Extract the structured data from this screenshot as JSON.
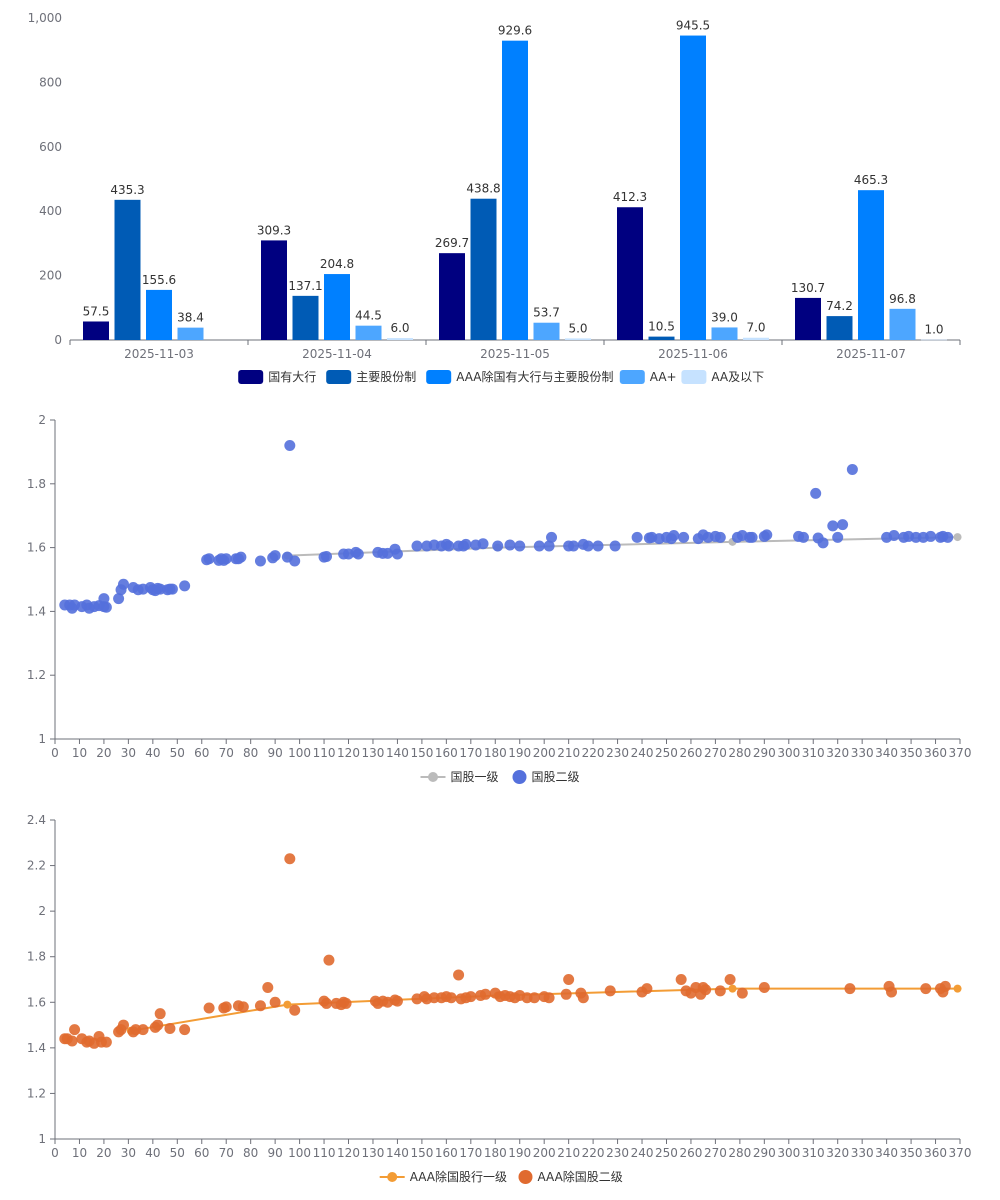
{
  "chart_data": [
    {
      "type": "bar",
      "categories": [
        "2025-11-03",
        "2025-11-04",
        "2025-11-05",
        "2025-11-06",
        "2025-11-07"
      ],
      "series": [
        {
          "name": "国有大行",
          "color": "#000080",
          "values": [
            57.5,
            309.3,
            269.7,
            412.3,
            130.7
          ]
        },
        {
          "name": "主要股份制",
          "color": "#005bb5",
          "values": [
            435.3,
            137.1,
            438.8,
            10.5,
            74.2
          ]
        },
        {
          "name": "AAA除国有大行与主要股份制",
          "color": "#0080ff",
          "values": [
            155.6,
            204.8,
            929.6,
            945.5,
            465.3
          ]
        },
        {
          "name": "AA+",
          "color": "#4da6ff",
          "values": [
            38.4,
            44.5,
            53.7,
            39.0,
            96.8
          ]
        },
        {
          "name": "AA及以下",
          "color": "#c6e2ff",
          "values": [
            null,
            6.0,
            5.0,
            7.0,
            1.0
          ]
        }
      ],
      "labels": [
        [
          "57.5",
          "435.3",
          "155.6",
          "38.4",
          ""
        ],
        [
          "309.3",
          "137.1",
          "204.8",
          "44.5",
          "6.0"
        ],
        [
          "269.7",
          "438.8",
          "929.6",
          "53.7",
          "5.0"
        ],
        [
          "412.3",
          "10.5",
          "945.5",
          "39.0",
          "7.0"
        ],
        [
          "130.7",
          "74.2",
          "465.3",
          "96.8",
          "1.0"
        ]
      ],
      "ylim": [
        0,
        1000
      ],
      "yticks": [
        "0",
        "200",
        "400",
        "600",
        "800",
        "1,000"
      ],
      "ytick_values": [
        0,
        200,
        400,
        600,
        800,
        1000
      ],
      "legend_position": "bottom"
    },
    {
      "type": "scatter",
      "xlim": [
        0,
        370
      ],
      "ylim": [
        1,
        2
      ],
      "xticks": [
        "0",
        "10",
        "20",
        "30",
        "40",
        "50",
        "60",
        "70",
        "80",
        "90",
        "100",
        "110",
        "120",
        "130",
        "140",
        "150",
        "160",
        "170",
        "180",
        "190",
        "200",
        "210",
        "220",
        "230",
        "240",
        "250",
        "260",
        "270",
        "280",
        "290",
        "300",
        "310",
        "320",
        "330",
        "340",
        "350",
        "360",
        "370"
      ],
      "xtick_values": [
        0,
        10,
        20,
        30,
        40,
        50,
        60,
        70,
        80,
        90,
        100,
        110,
        120,
        130,
        140,
        150,
        160,
        170,
        180,
        190,
        200,
        210,
        220,
        230,
        240,
        250,
        260,
        270,
        280,
        290,
        300,
        310,
        320,
        330,
        340,
        350,
        360,
        370
      ],
      "yticks": [
        "1",
        "1.2",
        "1.4",
        "1.6",
        "1.8",
        "2"
      ],
      "ytick_values": [
        1,
        1.2,
        1.4,
        1.6,
        1.8,
        2
      ],
      "legend_position": "bottom",
      "line_series": {
        "name": "国股一级",
        "color": "#bbbbbb",
        "points": [
          [
            95,
            1.575
          ],
          [
            181,
            1.6
          ],
          [
            277,
            1.618
          ],
          [
            369,
            1.633
          ]
        ]
      },
      "scatter_series": {
        "name": "国股二级",
        "color": "#5470dc",
        "points": [
          [
            4,
            1.42
          ],
          [
            6,
            1.42
          ],
          [
            7,
            1.41
          ],
          [
            8,
            1.42
          ],
          [
            11,
            1.415
          ],
          [
            13,
            1.42
          ],
          [
            14,
            1.41
          ],
          [
            16,
            1.415
          ],
          [
            18,
            1.418
          ],
          [
            20,
            1.415
          ],
          [
            20,
            1.44
          ],
          [
            21,
            1.413
          ],
          [
            26,
            1.44
          ],
          [
            27,
            1.468
          ],
          [
            28,
            1.485
          ],
          [
            32,
            1.475
          ],
          [
            34,
            1.468
          ],
          [
            36,
            1.47
          ],
          [
            39,
            1.475
          ],
          [
            40,
            1.468
          ],
          [
            41,
            1.465
          ],
          [
            42,
            1.472
          ],
          [
            43,
            1.47
          ],
          [
            46,
            1.468
          ],
          [
            47,
            1.47
          ],
          [
            48,
            1.47
          ],
          [
            53,
            1.48
          ],
          [
            62,
            1.562
          ],
          [
            63,
            1.565
          ],
          [
            67,
            1.56
          ],
          [
            68,
            1.565
          ],
          [
            69,
            1.56
          ],
          [
            70,
            1.565
          ],
          [
            74,
            1.565
          ],
          [
            75,
            1.565
          ],
          [
            76,
            1.57
          ],
          [
            84,
            1.558
          ],
          [
            89,
            1.568
          ],
          [
            90,
            1.575
          ],
          [
            95,
            1.57
          ],
          [
            96,
            1.92
          ],
          [
            98,
            1.558
          ],
          [
            110,
            1.57
          ],
          [
            111,
            1.572
          ],
          [
            118,
            1.58
          ],
          [
            120,
            1.58
          ],
          [
            123,
            1.585
          ],
          [
            124,
            1.58
          ],
          [
            132,
            1.585
          ],
          [
            134,
            1.582
          ],
          [
            136,
            1.582
          ],
          [
            139,
            1.595
          ],
          [
            140,
            1.58
          ],
          [
            148,
            1.605
          ],
          [
            152,
            1.605
          ],
          [
            155,
            1.608
          ],
          [
            158,
            1.605
          ],
          [
            160,
            1.61
          ],
          [
            161,
            1.605
          ],
          [
            165,
            1.605
          ],
          [
            167,
            1.605
          ],
          [
            168,
            1.61
          ],
          [
            172,
            1.608
          ],
          [
            175,
            1.612
          ],
          [
            181,
            1.605
          ],
          [
            186,
            1.608
          ],
          [
            190,
            1.605
          ],
          [
            198,
            1.605
          ],
          [
            202,
            1.605
          ],
          [
            203,
            1.632
          ],
          [
            210,
            1.605
          ],
          [
            212,
            1.605
          ],
          [
            216,
            1.61
          ],
          [
            218,
            1.605
          ],
          [
            222,
            1.605
          ],
          [
            229,
            1.605
          ],
          [
            238,
            1.632
          ],
          [
            243,
            1.63
          ],
          [
            244,
            1.632
          ],
          [
            247,
            1.628
          ],
          [
            250,
            1.632
          ],
          [
            252,
            1.628
          ],
          [
            253,
            1.638
          ],
          [
            257,
            1.632
          ],
          [
            263,
            1.628
          ],
          [
            265,
            1.64
          ],
          [
            267,
            1.632
          ],
          [
            270,
            1.635
          ],
          [
            272,
            1.632
          ],
          [
            279,
            1.632
          ],
          [
            281,
            1.638
          ],
          [
            284,
            1.632
          ],
          [
            285,
            1.632
          ],
          [
            290,
            1.635
          ],
          [
            291,
            1.64
          ],
          [
            304,
            1.635
          ],
          [
            306,
            1.632
          ],
          [
            311,
            1.77
          ],
          [
            312,
            1.63
          ],
          [
            314,
            1.615
          ],
          [
            318,
            1.668
          ],
          [
            320,
            1.632
          ],
          [
            322,
            1.672
          ],
          [
            326,
            1.845
          ],
          [
            340,
            1.632
          ],
          [
            343,
            1.638
          ],
          [
            347,
            1.632
          ],
          [
            349,
            1.635
          ],
          [
            352,
            1.632
          ],
          [
            355,
            1.632
          ],
          [
            358,
            1.635
          ],
          [
            362,
            1.632
          ],
          [
            363,
            1.635
          ],
          [
            365,
            1.632
          ]
        ]
      }
    },
    {
      "type": "scatter",
      "xlim": [
        0,
        370
      ],
      "ylim": [
        1,
        2.4
      ],
      "xticks": [
        "0",
        "10",
        "20",
        "30",
        "40",
        "50",
        "60",
        "70",
        "80",
        "90",
        "100",
        "110",
        "120",
        "130",
        "140",
        "150",
        "160",
        "170",
        "180",
        "190",
        "200",
        "210",
        "220",
        "230",
        "240",
        "250",
        "260",
        "270",
        "280",
        "290",
        "300",
        "310",
        "320",
        "330",
        "340",
        "350",
        "360",
        "370"
      ],
      "xtick_values": [
        0,
        10,
        20,
        30,
        40,
        50,
        60,
        70,
        80,
        90,
        100,
        110,
        120,
        130,
        140,
        150,
        160,
        170,
        180,
        190,
        200,
        210,
        220,
        230,
        240,
        250,
        260,
        270,
        280,
        290,
        300,
        310,
        320,
        330,
        340,
        350,
        360,
        370
      ],
      "yticks": [
        "1",
        "1.2",
        "1.4",
        "1.6",
        "1.8",
        "2",
        "2.2",
        "2.4"
      ],
      "ytick_values": [
        1,
        1.2,
        1.4,
        1.6,
        1.8,
        2,
        2.2,
        2.4
      ],
      "legend_position": "bottom",
      "line_series": {
        "name": "AAA除国股行一级",
        "color": "#f39c35",
        "points": [
          [
            31,
            1.475
          ],
          [
            95,
            1.59
          ],
          [
            181,
            1.63
          ],
          [
            277,
            1.66
          ],
          [
            369,
            1.66
          ]
        ]
      },
      "scatter_series": {
        "name": "AAA除国股二级",
        "color": "#e06a2f",
        "points": [
          [
            4,
            1.44
          ],
          [
            5,
            1.44
          ],
          [
            7,
            1.43
          ],
          [
            8,
            1.48
          ],
          [
            11,
            1.44
          ],
          [
            13,
            1.425
          ],
          [
            14,
            1.43
          ],
          [
            16,
            1.42
          ],
          [
            18,
            1.45
          ],
          [
            19,
            1.425
          ],
          [
            21,
            1.425
          ],
          [
            26,
            1.47
          ],
          [
            27,
            1.48
          ],
          [
            28,
            1.5
          ],
          [
            32,
            1.47
          ],
          [
            33,
            1.48
          ],
          [
            36,
            1.48
          ],
          [
            41,
            1.49
          ],
          [
            42,
            1.5
          ],
          [
            43,
            1.55
          ],
          [
            47,
            1.485
          ],
          [
            53,
            1.48
          ],
          [
            63,
            1.575
          ],
          [
            69,
            1.575
          ],
          [
            70,
            1.58
          ],
          [
            75,
            1.585
          ],
          [
            77,
            1.58
          ],
          [
            84,
            1.585
          ],
          [
            87,
            1.665
          ],
          [
            90,
            1.6
          ],
          [
            96,
            2.23
          ],
          [
            98,
            1.565
          ],
          [
            110,
            1.605
          ],
          [
            111,
            1.595
          ],
          [
            112,
            1.785
          ],
          [
            115,
            1.595
          ],
          [
            117,
            1.59
          ],
          [
            118,
            1.6
          ],
          [
            119,
            1.595
          ],
          [
            131,
            1.605
          ],
          [
            132,
            1.595
          ],
          [
            134,
            1.605
          ],
          [
            136,
            1.6
          ],
          [
            139,
            1.61
          ],
          [
            140,
            1.605
          ],
          [
            148,
            1.615
          ],
          [
            151,
            1.625
          ],
          [
            152,
            1.615
          ],
          [
            155,
            1.62
          ],
          [
            158,
            1.62
          ],
          [
            160,
            1.625
          ],
          [
            162,
            1.62
          ],
          [
            165,
            1.72
          ],
          [
            166,
            1.615
          ],
          [
            168,
            1.62
          ],
          [
            170,
            1.625
          ],
          [
            174,
            1.63
          ],
          [
            176,
            1.635
          ],
          [
            180,
            1.64
          ],
          [
            182,
            1.625
          ],
          [
            184,
            1.63
          ],
          [
            186,
            1.625
          ],
          [
            188,
            1.62
          ],
          [
            190,
            1.63
          ],
          [
            193,
            1.62
          ],
          [
            196,
            1.62
          ],
          [
            200,
            1.625
          ],
          [
            202,
            1.62
          ],
          [
            209,
            1.635
          ],
          [
            210,
            1.7
          ],
          [
            215,
            1.64
          ],
          [
            216,
            1.62
          ],
          [
            227,
            1.65
          ],
          [
            240,
            1.645
          ],
          [
            242,
            1.66
          ],
          [
            256,
            1.7
          ],
          [
            258,
            1.65
          ],
          [
            260,
            1.64
          ],
          [
            262,
            1.665
          ],
          [
            264,
            1.635
          ],
          [
            265,
            1.665
          ],
          [
            266,
            1.655
          ],
          [
            272,
            1.65
          ],
          [
            276,
            1.7
          ],
          [
            281,
            1.64
          ],
          [
            290,
            1.665
          ],
          [
            325,
            1.66
          ],
          [
            341,
            1.67
          ],
          [
            342,
            1.645
          ],
          [
            356,
            1.66
          ],
          [
            362,
            1.66
          ],
          [
            363,
            1.645
          ],
          [
            364,
            1.67
          ]
        ]
      }
    }
  ]
}
